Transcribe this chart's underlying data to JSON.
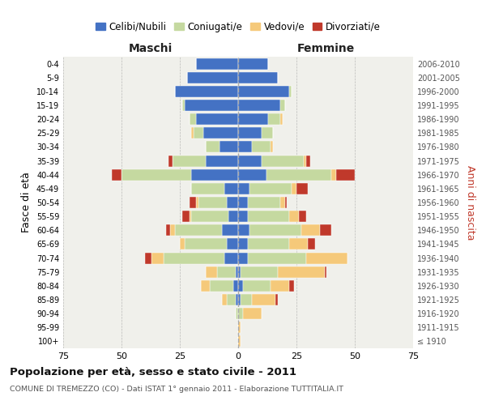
{
  "age_groups": [
    "100+",
    "95-99",
    "90-94",
    "85-89",
    "80-84",
    "75-79",
    "70-74",
    "65-69",
    "60-64",
    "55-59",
    "50-54",
    "45-49",
    "40-44",
    "35-39",
    "30-34",
    "25-29",
    "20-24",
    "15-19",
    "10-14",
    "5-9",
    "0-4"
  ],
  "birth_years": [
    "≤ 1910",
    "1911-1915",
    "1916-1920",
    "1921-1925",
    "1926-1930",
    "1931-1935",
    "1936-1940",
    "1941-1945",
    "1946-1950",
    "1951-1955",
    "1956-1960",
    "1961-1965",
    "1966-1970",
    "1971-1975",
    "1976-1980",
    "1981-1985",
    "1986-1990",
    "1991-1995",
    "1996-2000",
    "2001-2005",
    "2006-2010"
  ],
  "maschi": {
    "celibi": [
      0,
      0,
      0,
      1,
      2,
      1,
      6,
      5,
      7,
      4,
      5,
      6,
      20,
      14,
      8,
      15,
      18,
      23,
      27,
      22,
      18
    ],
    "coniugati": [
      0,
      0,
      1,
      4,
      10,
      8,
      26,
      18,
      20,
      16,
      12,
      14,
      30,
      14,
      6,
      4,
      3,
      1,
      0,
      0,
      0
    ],
    "vedovi": [
      0,
      0,
      0,
      2,
      4,
      5,
      5,
      2,
      2,
      1,
      1,
      0,
      0,
      0,
      0,
      1,
      0,
      0,
      0,
      0,
      0
    ],
    "divorziati": [
      0,
      0,
      0,
      0,
      0,
      0,
      3,
      0,
      2,
      3,
      3,
      0,
      4,
      2,
      0,
      0,
      0,
      0,
      0,
      0,
      0
    ]
  },
  "femmine": {
    "nubili": [
      0,
      0,
      0,
      1,
      2,
      1,
      4,
      4,
      5,
      4,
      4,
      5,
      12,
      10,
      6,
      10,
      13,
      18,
      22,
      17,
      13
    ],
    "coniugate": [
      0,
      0,
      2,
      5,
      12,
      16,
      25,
      18,
      22,
      18,
      14,
      18,
      28,
      18,
      8,
      5,
      5,
      2,
      1,
      0,
      0
    ],
    "vedove": [
      1,
      1,
      8,
      10,
      8,
      20,
      18,
      8,
      8,
      4,
      2,
      2,
      2,
      1,
      1,
      0,
      1,
      0,
      0,
      0,
      0
    ],
    "divorziate": [
      0,
      0,
      0,
      1,
      2,
      1,
      0,
      3,
      5,
      3,
      1,
      5,
      8,
      2,
      0,
      0,
      0,
      0,
      0,
      0,
      0
    ]
  },
  "color_celibi": "#4472c4",
  "color_coniugati": "#c5d9a0",
  "color_vedovi": "#f5c97a",
  "color_divorziati": "#c0392b",
  "title": "Popolazione per età, sesso e stato civile - 2011",
  "subtitle": "COMUNE DI TREMEZZO (CO) - Dati ISTAT 1° gennaio 2011 - Elaborazione TUTTITALIA.IT",
  "xlabel_maschi": "Maschi",
  "xlabel_femmine": "Femmine",
  "ylabel_left": "Fasce di età",
  "ylabel_right": "Anni di nascita",
  "xlim": 75,
  "bg_color": "#f0f0eb",
  "legend_labels": [
    "Celibi/Nubili",
    "Coniugati/e",
    "Vedovi/e",
    "Divorziati/e"
  ]
}
